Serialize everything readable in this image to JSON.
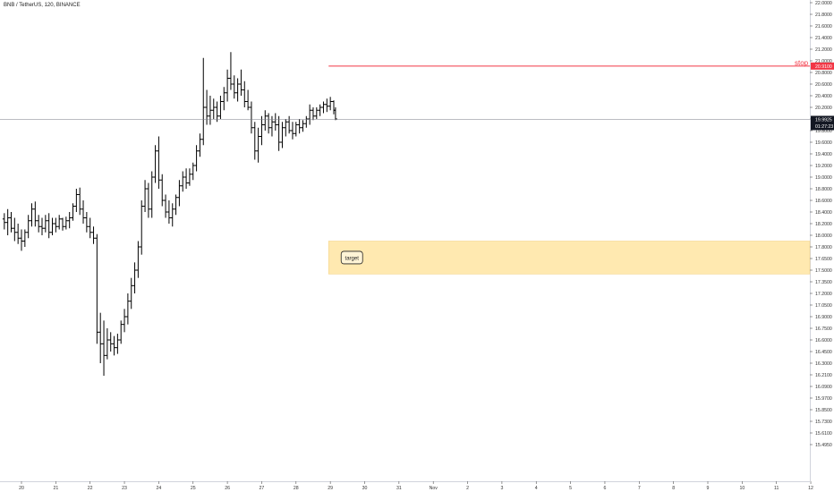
{
  "symbol_line": "BNB / TetherUS, 120, BINANCE",
  "chart_data": {
    "type": "ohlc",
    "title": "BNB / TetherUS, 120, BINANCE",
    "x_ticks": [
      "20",
      "21",
      "22",
      "23",
      "24",
      "25",
      "26",
      "27",
      "28",
      "29",
      "30",
      "31",
      "Nov",
      "2",
      "3",
      "4",
      "5",
      "6",
      "7",
      "8",
      "9",
      "10",
      "11",
      "12"
    ],
    "y_ticks": [
      "22.0000",
      "21.8000",
      "21.6000",
      "21.4000",
      "21.2000",
      "21.0000",
      "20.8000",
      "20.6000",
      "20.4000",
      "20.2000",
      "20.0000",
      "19.8000",
      "19.6000",
      "19.4000",
      "19.2000",
      "19.0000",
      "18.8000",
      "18.6000",
      "18.4000",
      "18.2000",
      "18.0000",
      "17.8000",
      "17.6500",
      "17.5000",
      "17.3500",
      "17.2000",
      "17.0500",
      "16.9000",
      "16.7500",
      "16.6000",
      "16.4500",
      "16.3000",
      "16.2100",
      "16.0900",
      "15.9700",
      "15.8500",
      "15.7300",
      "15.6100",
      "15.4950"
    ],
    "ylim": [
      15.45,
      22.05
    ],
    "xlim_days": [
      19.5,
      32.4
    ],
    "last_price": "19.9925",
    "countdown": "01:27:23",
    "series": [
      {
        "day": 19.5,
        "o": 18.28,
        "h": 18.38,
        "l": 18.1,
        "c": 18.22
      },
      {
        "day": 19.6,
        "o": 18.22,
        "h": 18.45,
        "l": 18.0,
        "c": 18.3
      },
      {
        "day": 19.7,
        "o": 18.3,
        "h": 18.4,
        "l": 18.05,
        "c": 18.12
      },
      {
        "day": 19.8,
        "o": 18.12,
        "h": 18.3,
        "l": 17.9,
        "c": 18.05
      },
      {
        "day": 19.9,
        "o": 18.05,
        "h": 18.2,
        "l": 17.85,
        "c": 17.95
      },
      {
        "day": 20.0,
        "o": 17.95,
        "h": 18.1,
        "l": 17.75,
        "c": 17.9
      },
      {
        "day": 20.1,
        "o": 17.9,
        "h": 18.1,
        "l": 17.8,
        "c": 18.05
      },
      {
        "day": 20.2,
        "o": 18.05,
        "h": 18.35,
        "l": 17.95,
        "c": 18.25
      },
      {
        "day": 20.3,
        "o": 18.25,
        "h": 18.55,
        "l": 18.15,
        "c": 18.45
      },
      {
        "day": 20.4,
        "o": 18.45,
        "h": 18.58,
        "l": 18.15,
        "c": 18.25
      },
      {
        "day": 20.5,
        "o": 18.25,
        "h": 18.35,
        "l": 18.05,
        "c": 18.15
      },
      {
        "day": 20.6,
        "o": 18.15,
        "h": 18.3,
        "l": 18.0,
        "c": 18.12
      },
      {
        "day": 20.7,
        "o": 18.12,
        "h": 18.35,
        "l": 18.05,
        "c": 18.25
      },
      {
        "day": 20.8,
        "o": 18.25,
        "h": 18.38,
        "l": 17.95,
        "c": 18.05
      },
      {
        "day": 20.9,
        "o": 18.05,
        "h": 18.3,
        "l": 18.0,
        "c": 18.2
      },
      {
        "day": 21.0,
        "o": 18.2,
        "h": 18.3,
        "l": 18.05,
        "c": 18.15
      },
      {
        "day": 21.1,
        "o": 18.15,
        "h": 18.35,
        "l": 18.1,
        "c": 18.28
      },
      {
        "day": 21.2,
        "o": 18.28,
        "h": 18.3,
        "l": 18.08,
        "c": 18.15
      },
      {
        "day": 21.3,
        "o": 18.15,
        "h": 18.32,
        "l": 18.1,
        "c": 18.25
      },
      {
        "day": 21.4,
        "o": 18.25,
        "h": 18.4,
        "l": 18.12,
        "c": 18.3
      },
      {
        "day": 21.5,
        "o": 18.3,
        "h": 18.55,
        "l": 18.25,
        "c": 18.5
      },
      {
        "day": 21.6,
        "o": 18.5,
        "h": 18.8,
        "l": 18.4,
        "c": 18.7
      },
      {
        "day": 21.7,
        "o": 18.7,
        "h": 18.82,
        "l": 18.35,
        "c": 18.45
      },
      {
        "day": 21.8,
        "o": 18.45,
        "h": 18.6,
        "l": 18.2,
        "c": 18.3
      },
      {
        "day": 21.9,
        "o": 18.3,
        "h": 18.4,
        "l": 18.05,
        "c": 18.15
      },
      {
        "day": 22.0,
        "o": 18.15,
        "h": 18.3,
        "l": 17.95,
        "c": 18.05
      },
      {
        "day": 22.1,
        "o": 18.05,
        "h": 18.15,
        "l": 17.85,
        "c": 17.95
      },
      {
        "day": 22.2,
        "o": 17.95,
        "h": 18.02,
        "l": 16.55,
        "c": 16.7
      },
      {
        "day": 22.3,
        "o": 16.7,
        "h": 16.95,
        "l": 16.3,
        "c": 16.55
      },
      {
        "day": 22.4,
        "o": 16.55,
        "h": 16.85,
        "l": 16.2,
        "c": 16.4
      },
      {
        "day": 22.5,
        "o": 16.4,
        "h": 16.75,
        "l": 16.35,
        "c": 16.6
      },
      {
        "day": 22.6,
        "o": 16.6,
        "h": 16.7,
        "l": 16.45,
        "c": 16.55
      },
      {
        "day": 22.7,
        "o": 16.55,
        "h": 16.65,
        "l": 16.4,
        "c": 16.5
      },
      {
        "day": 22.8,
        "o": 16.5,
        "h": 16.68,
        "l": 16.42,
        "c": 16.6
      },
      {
        "day": 22.9,
        "o": 16.6,
        "h": 16.85,
        "l": 16.55,
        "c": 16.8
      },
      {
        "day": 23.0,
        "o": 16.8,
        "h": 17.0,
        "l": 16.7,
        "c": 16.9
      },
      {
        "day": 23.1,
        "o": 16.9,
        "h": 17.2,
        "l": 16.8,
        "c": 17.1
      },
      {
        "day": 23.2,
        "o": 17.1,
        "h": 17.4,
        "l": 17.0,
        "c": 17.3
      },
      {
        "day": 23.3,
        "o": 17.3,
        "h": 17.6,
        "l": 17.2,
        "c": 17.5
      },
      {
        "day": 23.4,
        "o": 17.5,
        "h": 17.9,
        "l": 17.4,
        "c": 17.8
      },
      {
        "day": 23.5,
        "o": 17.8,
        "h": 18.6,
        "l": 17.7,
        "c": 18.5
      },
      {
        "day": 23.6,
        "o": 18.5,
        "h": 18.95,
        "l": 18.4,
        "c": 18.8
      },
      {
        "day": 23.7,
        "o": 18.8,
        "h": 18.9,
        "l": 18.3,
        "c": 18.45
      },
      {
        "day": 23.8,
        "o": 18.45,
        "h": 19.1,
        "l": 18.3,
        "c": 19.0
      },
      {
        "day": 23.9,
        "o": 19.0,
        "h": 19.55,
        "l": 18.9,
        "c": 19.45
      },
      {
        "day": 24.0,
        "o": 19.45,
        "h": 19.7,
        "l": 18.8,
        "c": 18.95
      },
      {
        "day": 24.1,
        "o": 18.95,
        "h": 19.05,
        "l": 18.5,
        "c": 18.6
      },
      {
        "day": 24.2,
        "o": 18.6,
        "h": 18.7,
        "l": 18.3,
        "c": 18.4
      },
      {
        "day": 24.3,
        "o": 18.4,
        "h": 18.6,
        "l": 18.2,
        "c": 18.3
      },
      {
        "day": 24.4,
        "o": 18.3,
        "h": 18.55,
        "l": 18.15,
        "c": 18.45
      },
      {
        "day": 24.5,
        "o": 18.45,
        "h": 18.7,
        "l": 18.35,
        "c": 18.65
      },
      {
        "day": 24.6,
        "o": 18.65,
        "h": 18.95,
        "l": 18.5,
        "c": 18.85
      },
      {
        "day": 24.7,
        "o": 18.85,
        "h": 19.1,
        "l": 18.75,
        "c": 19.0
      },
      {
        "day": 24.8,
        "o": 19.0,
        "h": 19.15,
        "l": 18.8,
        "c": 18.9
      },
      {
        "day": 24.9,
        "o": 18.9,
        "h": 19.15,
        "l": 18.85,
        "c": 19.05
      },
      {
        "day": 25.0,
        "o": 19.05,
        "h": 19.25,
        "l": 18.95,
        "c": 19.2
      },
      {
        "day": 25.1,
        "o": 19.2,
        "h": 19.55,
        "l": 19.1,
        "c": 19.45
      },
      {
        "day": 25.2,
        "o": 19.45,
        "h": 19.75,
        "l": 19.35,
        "c": 19.65
      },
      {
        "day": 25.3,
        "o": 19.65,
        "h": 21.05,
        "l": 19.55,
        "c": 20.2
      },
      {
        "day": 25.4,
        "o": 20.2,
        "h": 20.5,
        "l": 19.9,
        "c": 20.05
      },
      {
        "day": 25.5,
        "o": 20.05,
        "h": 20.4,
        "l": 19.9,
        "c": 20.15
      },
      {
        "day": 25.6,
        "o": 20.15,
        "h": 20.35,
        "l": 20.0,
        "c": 20.2
      },
      {
        "day": 25.7,
        "o": 20.2,
        "h": 20.3,
        "l": 19.95,
        "c": 20.05
      },
      {
        "day": 25.8,
        "o": 20.05,
        "h": 20.4,
        "l": 20.0,
        "c": 20.3
      },
      {
        "day": 25.9,
        "o": 20.3,
        "h": 20.55,
        "l": 20.15,
        "c": 20.45
      },
      {
        "day": 26.0,
        "o": 20.45,
        "h": 20.85,
        "l": 20.3,
        "c": 20.7
      },
      {
        "day": 26.1,
        "o": 20.7,
        "h": 21.15,
        "l": 20.5,
        "c": 20.6
      },
      {
        "day": 26.2,
        "o": 20.6,
        "h": 20.75,
        "l": 20.35,
        "c": 20.45
      },
      {
        "day": 26.3,
        "o": 20.45,
        "h": 20.7,
        "l": 20.3,
        "c": 20.6
      },
      {
        "day": 26.4,
        "o": 20.6,
        "h": 20.85,
        "l": 20.4,
        "c": 20.5
      },
      {
        "day": 26.5,
        "o": 20.5,
        "h": 20.65,
        "l": 20.2,
        "c": 20.3
      },
      {
        "day": 26.6,
        "o": 20.3,
        "h": 20.5,
        "l": 20.15,
        "c": 20.2
      },
      {
        "day": 26.7,
        "o": 20.2,
        "h": 20.3,
        "l": 19.75,
        "c": 19.85
      },
      {
        "day": 26.8,
        "o": 19.85,
        "h": 19.95,
        "l": 19.3,
        "c": 19.45
      },
      {
        "day": 26.9,
        "o": 19.45,
        "h": 19.85,
        "l": 19.25,
        "c": 19.7
      },
      {
        "day": 27.0,
        "o": 19.7,
        "h": 20.05,
        "l": 19.55,
        "c": 19.9
      },
      {
        "day": 27.1,
        "o": 19.9,
        "h": 20.15,
        "l": 19.8,
        "c": 20.05
      },
      {
        "day": 27.2,
        "o": 20.05,
        "h": 20.1,
        "l": 19.75,
        "c": 19.85
      },
      {
        "day": 27.3,
        "o": 19.85,
        "h": 20.05,
        "l": 19.7,
        "c": 19.95
      },
      {
        "day": 27.4,
        "o": 19.95,
        "h": 20.1,
        "l": 19.8,
        "c": 19.9
      },
      {
        "day": 27.5,
        "o": 19.9,
        "h": 20.05,
        "l": 19.45,
        "c": 19.6
      },
      {
        "day": 27.6,
        "o": 19.6,
        "h": 19.95,
        "l": 19.5,
        "c": 19.85
      },
      {
        "day": 27.7,
        "o": 19.85,
        "h": 20.0,
        "l": 19.7,
        "c": 19.95
      },
      {
        "day": 27.8,
        "o": 19.95,
        "h": 20.05,
        "l": 19.75,
        "c": 19.8
      },
      {
        "day": 27.9,
        "o": 19.8,
        "h": 19.95,
        "l": 19.65,
        "c": 19.75
      },
      {
        "day": 28.0,
        "o": 19.75,
        "h": 19.95,
        "l": 19.7,
        "c": 19.9
      },
      {
        "day": 28.1,
        "o": 19.9,
        "h": 20.0,
        "l": 19.75,
        "c": 19.85
      },
      {
        "day": 28.2,
        "o": 19.85,
        "h": 19.98,
        "l": 19.78,
        "c": 19.92
      },
      {
        "day": 28.3,
        "o": 19.92,
        "h": 20.05,
        "l": 19.85,
        "c": 20.0
      },
      {
        "day": 28.4,
        "o": 20.0,
        "h": 20.25,
        "l": 19.9,
        "c": 20.15
      },
      {
        "day": 28.5,
        "o": 20.15,
        "h": 20.2,
        "l": 19.98,
        "c": 20.05
      },
      {
        "day": 28.6,
        "o": 20.05,
        "h": 20.2,
        "l": 20.0,
        "c": 20.15
      },
      {
        "day": 28.7,
        "o": 20.15,
        "h": 20.25,
        "l": 20.05,
        "c": 20.2
      },
      {
        "day": 28.8,
        "o": 20.2,
        "h": 20.3,
        "l": 20.1,
        "c": 20.25
      },
      {
        "day": 28.9,
        "o": 20.25,
        "h": 20.35,
        "l": 20.12,
        "c": 20.22
      },
      {
        "day": 29.0,
        "o": 20.22,
        "h": 20.38,
        "l": 20.15,
        "c": 20.3
      },
      {
        "day": 29.1,
        "o": 20.3,
        "h": 20.32,
        "l": 20.08,
        "c": 20.15
      },
      {
        "day": 29.15,
        "o": 20.15,
        "h": 20.2,
        "l": 19.98,
        "c": 20.0
      }
    ],
    "horizontal_line": {
      "label": "stop",
      "price": 20.91,
      "price_label": "20.9100",
      "from_day": 28.95,
      "color": "#f23645"
    },
    "target_zone": {
      "label": "target",
      "top": 17.9,
      "bottom": 17.45,
      "from_day": 28.95,
      "color": "#ffe9b0"
    }
  }
}
